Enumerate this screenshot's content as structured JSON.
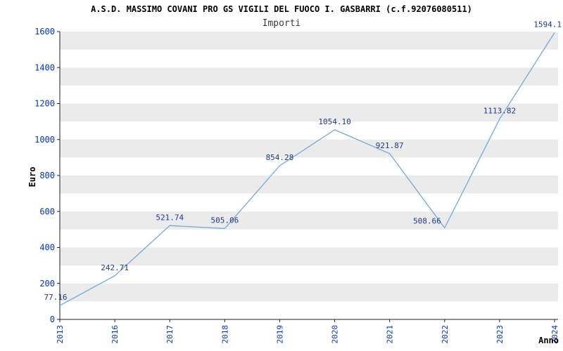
{
  "chart_data": {
    "type": "line",
    "title": "A.S.D. MASSIMO COVANI PRO GS VIGILI DEL FUOCO I. GASBARRI (c.f.92076080511)",
    "subtitle": "Importi",
    "xlabel": "Anno",
    "ylabel": "Euro",
    "categories": [
      "2013",
      "2016",
      "2017",
      "2018",
      "2019",
      "2020",
      "2021",
      "2022",
      "2023",
      "2024"
    ],
    "values": [
      77.16,
      242.71,
      521.74,
      505.06,
      854.28,
      1054.1,
      921.87,
      508.66,
      1113.82,
      1594.1
    ],
    "labels": [
      "77.16",
      "242.71",
      "521.74",
      "505.06",
      "854.28",
      "1054.10",
      "921.87",
      "508.66",
      "1113.82",
      "1594.1"
    ],
    "ylim": [
      0,
      1600
    ],
    "ytick_step": 200,
    "grid": "striped-bands",
    "legend": "none",
    "line_color": "#74a9d8",
    "tick_label_color": "#0033cc",
    "data_label_color": "#22388c",
    "stripe_color": "#ebebeb",
    "axis_color": "#222222",
    "label_offsets": {
      "0": [
        -6,
        -8,
        "middle"
      ],
      "7": [
        -5,
        -6,
        "end"
      ],
      "9": [
        10,
        -8,
        "end"
      ]
    }
  }
}
